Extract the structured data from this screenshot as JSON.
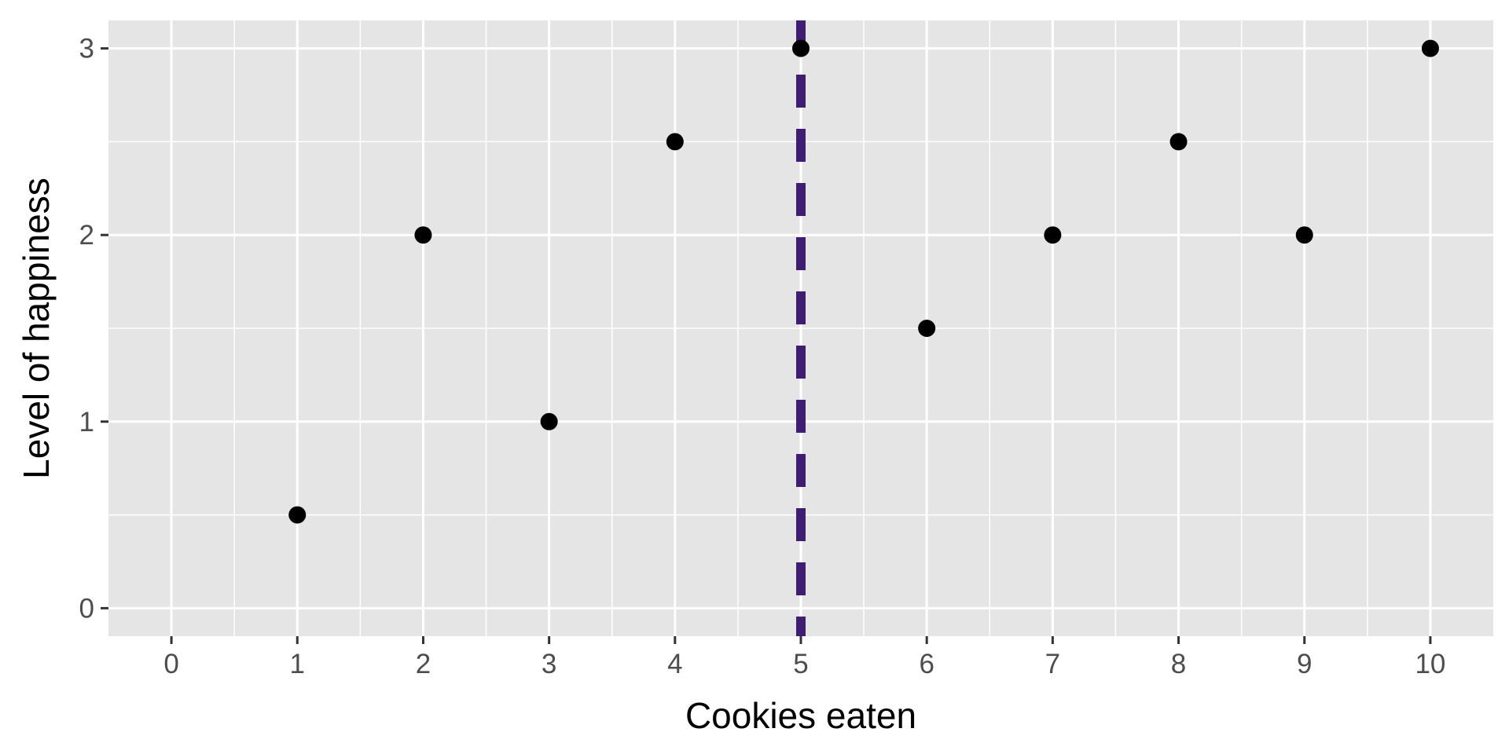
{
  "chart_data": {
    "type": "scatter",
    "title": "",
    "xlabel": "Cookies eaten",
    "ylabel": "Level of happiness",
    "x": [
      1,
      2,
      3,
      4,
      5,
      6,
      7,
      8,
      9,
      10
    ],
    "y": [
      0.5,
      2,
      1,
      2.5,
      3,
      1.5,
      2,
      2.5,
      2,
      3
    ],
    "xlim": [
      -0.5,
      10.5
    ],
    "ylim": [
      -0.15,
      3.15
    ],
    "x_ticks": [
      0,
      1,
      2,
      3,
      4,
      5,
      6,
      7,
      8,
      9,
      10
    ],
    "y_ticks": [
      0,
      1,
      2,
      3
    ],
    "x_minor_ticks": [
      0.5,
      1.5,
      2.5,
      3.5,
      4.5,
      5.5,
      6.5,
      7.5,
      8.5,
      9.5
    ],
    "y_minor_ticks": [
      0.5,
      1.5,
      2.5
    ],
    "grid": true,
    "legend": "none",
    "reference_line": {
      "orientation": "vertical",
      "x": 5,
      "style": "dashed",
      "color": "#3f1d73"
    },
    "colors": {
      "points": "#000000",
      "panel": "#e5e5e5",
      "grid": "#ffffff"
    }
  }
}
